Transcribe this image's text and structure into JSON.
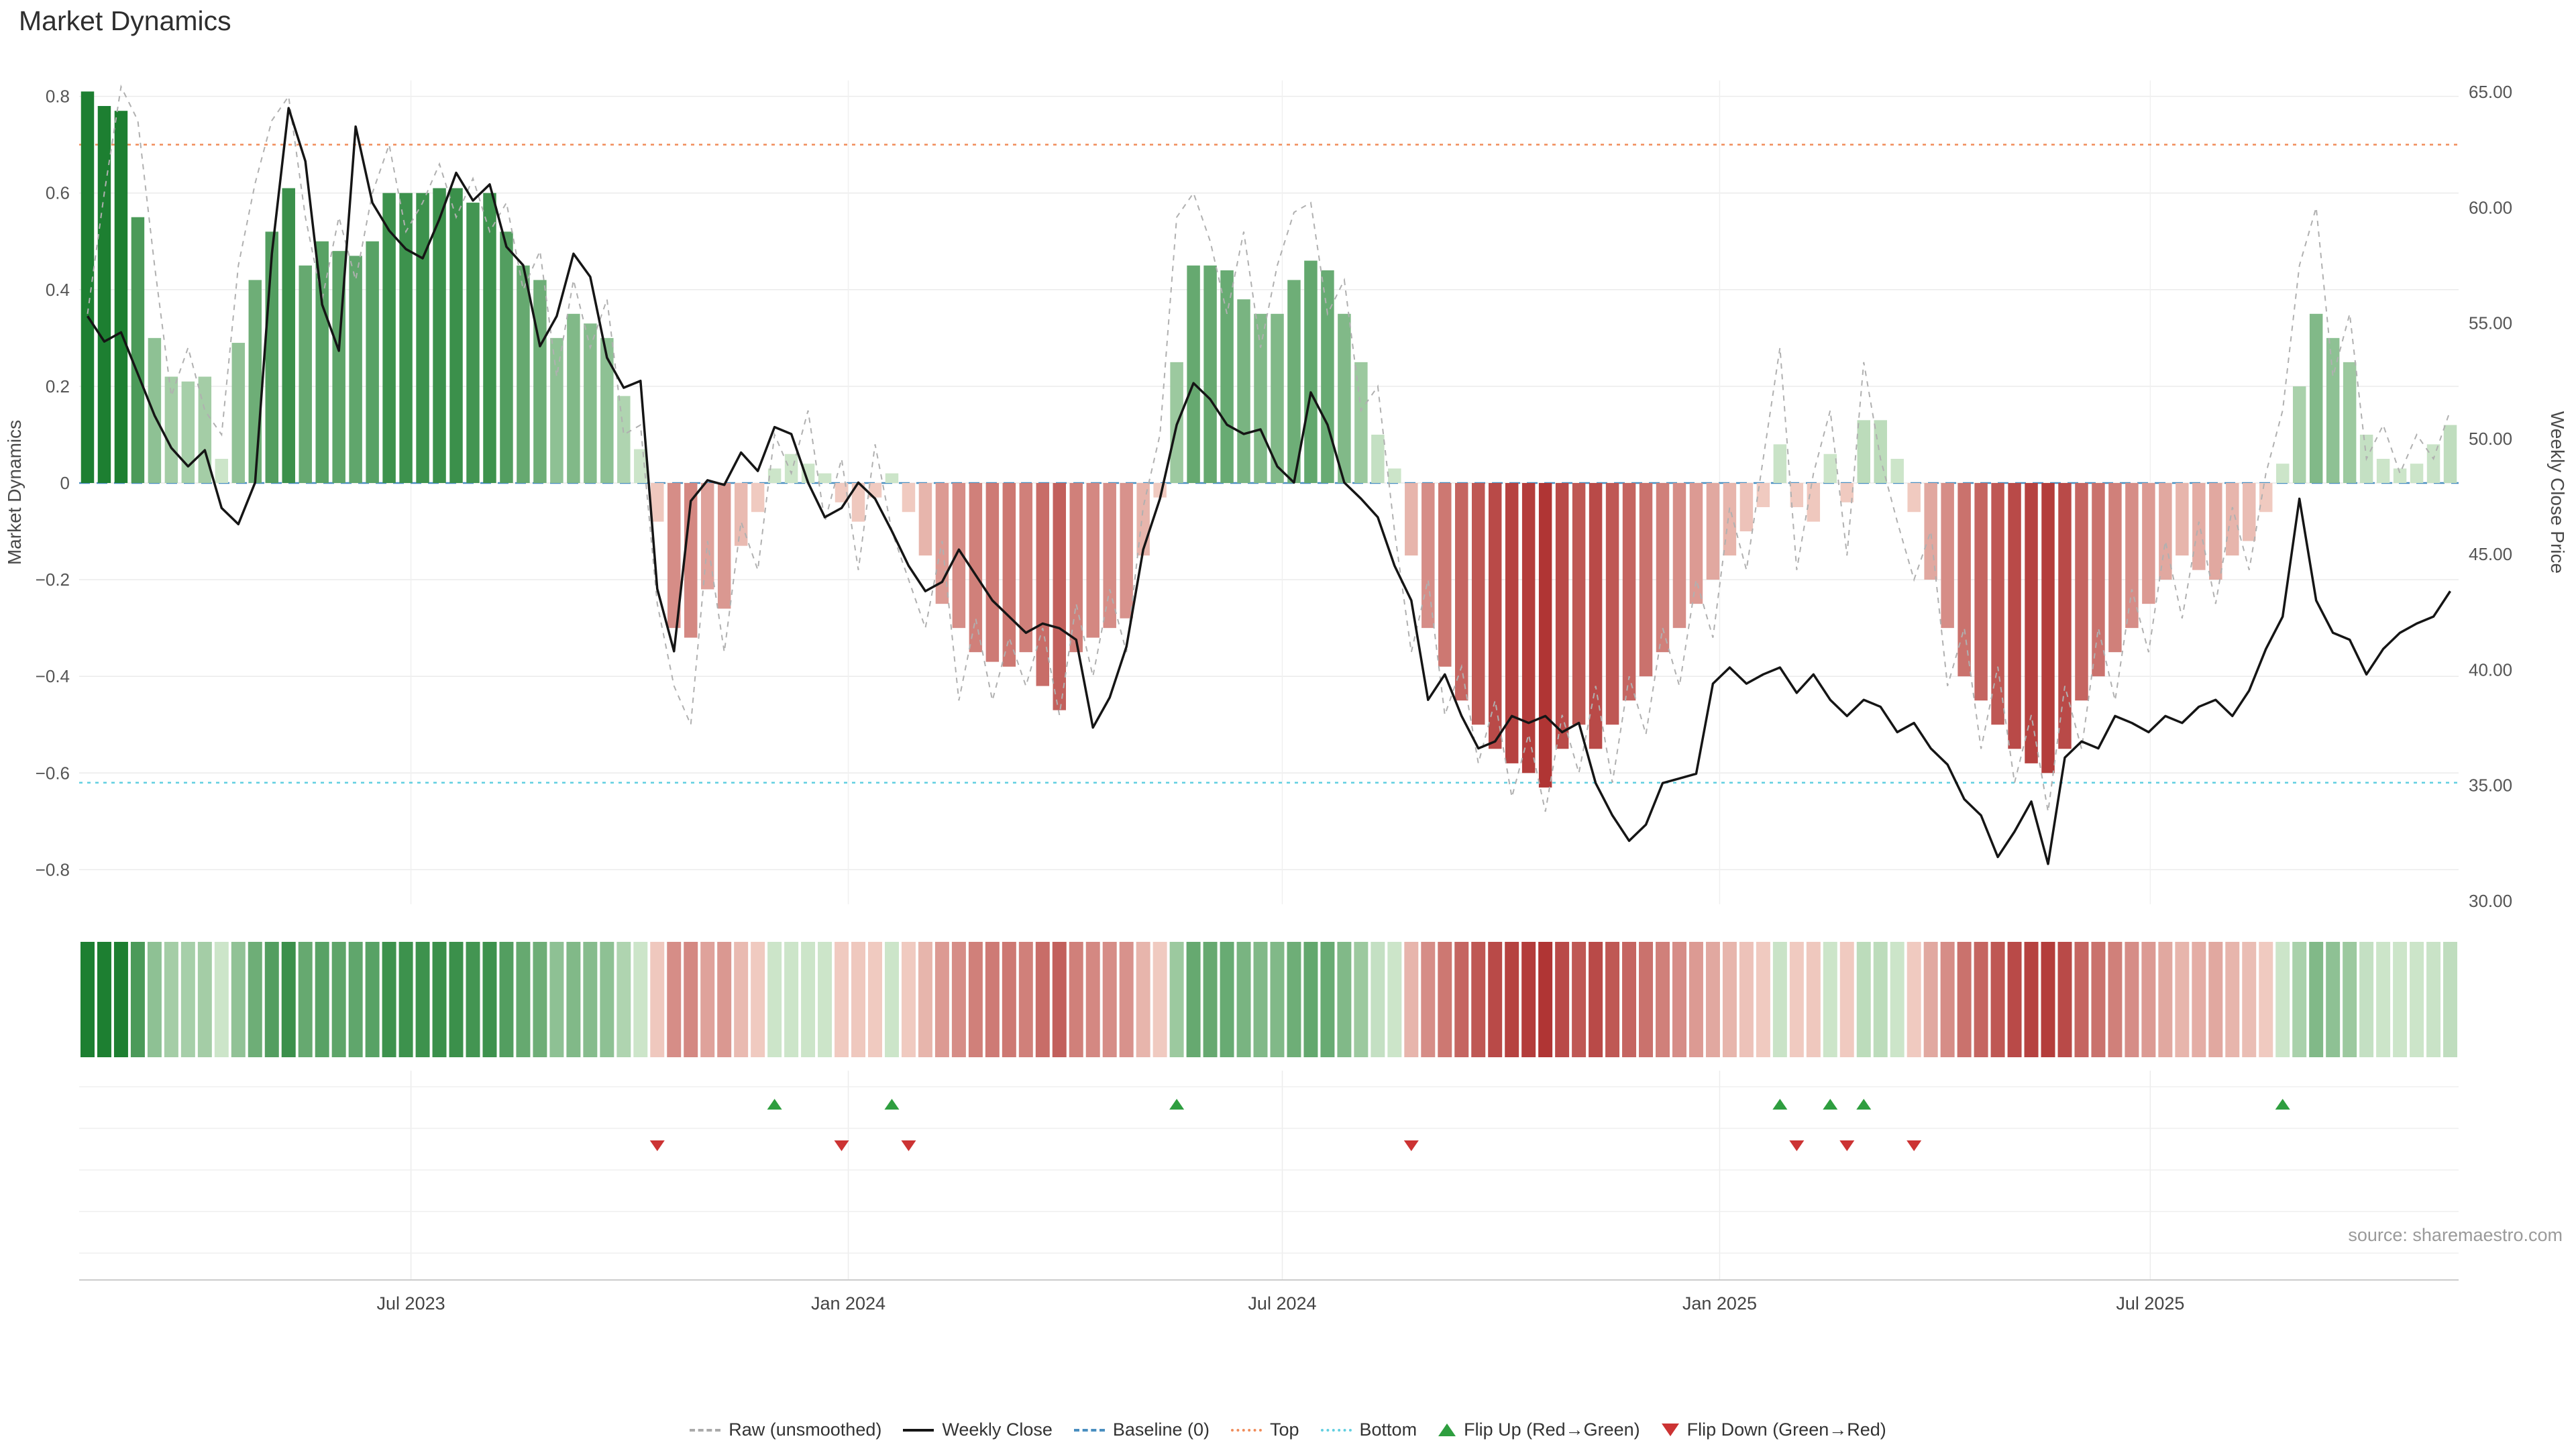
{
  "title": "Market Dynamics",
  "source": "source: sharemaestro.com",
  "axes": {
    "left": {
      "label": "Market Dynamics",
      "ticks": [
        {
          "label": "0.8",
          "v": 0.8
        },
        {
          "label": "0.6",
          "v": 0.6
        },
        {
          "label": "0.4",
          "v": 0.4
        },
        {
          "label": "0.2",
          "v": 0.2
        },
        {
          "label": "0",
          "v": 0.0
        },
        {
          "label": "−0.2",
          "v": -0.2
        },
        {
          "label": "−0.4",
          "v": -0.4
        },
        {
          "label": "−0.6",
          "v": -0.6
        },
        {
          "label": "−0.8",
          "v": -0.8
        }
      ]
    },
    "right": {
      "label": "Weekly Close Price",
      "ticks": [
        {
          "label": "65.00",
          "p": 65
        },
        {
          "label": "60.00",
          "p": 60
        },
        {
          "label": "55.00",
          "p": 55
        },
        {
          "label": "50.00",
          "p": 50
        },
        {
          "label": "45.00",
          "p": 45
        },
        {
          "label": "40.00",
          "p": 40
        },
        {
          "label": "35.00",
          "p": 35
        },
        {
          "label": "30.00",
          "p": 30
        }
      ]
    },
    "x": {
      "ticks": [
        {
          "label": "Jul 2023",
          "i": 19.3
        },
        {
          "label": "Jan 2024",
          "i": 45.4
        },
        {
          "label": "Jul 2024",
          "i": 71.3
        },
        {
          "label": "Jan 2025",
          "i": 97.4
        },
        {
          "label": "Jul 2025",
          "i": 123.1
        }
      ]
    }
  },
  "colors": {
    "pos_dark": "#1d7f31",
    "pos_light": "#dff0da",
    "neg_dark": "#a61d1d",
    "neg_light": "#f8ddd2",
    "close_line": "#151515",
    "raw_line": "#b0b0b0",
    "baseline": "#4a8fc0",
    "top_line": "#f08c5a",
    "bottom_line": "#62cfe0",
    "flip_up": "#2e9e3f",
    "flip_down": "#cc3333",
    "grid": "#ebebeb",
    "axis_text": "#555555"
  },
  "chart_data": {
    "type": "combo-bar-line",
    "x_unit": "week",
    "x_start": "2023-02-13",
    "n_points": 142,
    "ylim_left": [
      -0.9,
      0.85
    ],
    "ylim_right": [
      29.5,
      65.5
    ],
    "grid": true,
    "legend_position": "bottom",
    "reference_lines": {
      "baseline": 0,
      "top": 0.7,
      "bottom": -0.62
    },
    "series": {
      "md": {
        "name": "Market Dynamics (smoothed, bars + heatmap strip)",
        "axis": "left",
        "values": [
          0.81,
          0.78,
          0.77,
          0.55,
          0.3,
          0.22,
          0.21,
          0.22,
          0.05,
          0.29,
          0.42,
          0.52,
          0.61,
          0.45,
          0.5,
          0.48,
          0.47,
          0.5,
          0.6,
          0.6,
          0.6,
          0.61,
          0.61,
          0.58,
          0.6,
          0.52,
          0.45,
          0.42,
          0.3,
          0.35,
          0.33,
          0.3,
          0.18,
          0.07,
          -0.08,
          -0.3,
          -0.32,
          -0.22,
          -0.26,
          -0.13,
          -0.06,
          0.03,
          0.06,
          0.04,
          0.02,
          -0.04,
          -0.08,
          -0.03,
          0.02,
          -0.06,
          -0.15,
          -0.25,
          -0.3,
          -0.35,
          -0.37,
          -0.38,
          -0.35,
          -0.42,
          -0.47,
          -0.35,
          -0.32,
          -0.3,
          -0.28,
          -0.15,
          -0.03,
          0.25,
          0.45,
          0.45,
          0.44,
          0.38,
          0.35,
          0.35,
          0.42,
          0.46,
          0.44,
          0.35,
          0.25,
          0.1,
          0.03,
          -0.15,
          -0.3,
          -0.38,
          -0.45,
          -0.5,
          -0.55,
          -0.58,
          -0.6,
          -0.63,
          -0.55,
          -0.5,
          -0.55,
          -0.5,
          -0.45,
          -0.4,
          -0.35,
          -0.3,
          -0.25,
          -0.2,
          -0.15,
          -0.1,
          -0.05,
          0.08,
          -0.05,
          -0.08,
          0.06,
          -0.04,
          0.13,
          0.13,
          0.05,
          -0.06,
          -0.2,
          -0.3,
          -0.4,
          -0.45,
          -0.5,
          -0.55,
          -0.58,
          -0.6,
          -0.55,
          -0.45,
          -0.4,
          -0.35,
          -0.3,
          -0.25,
          -0.2,
          -0.15,
          -0.18,
          -0.2,
          -0.15,
          -0.12,
          -0.06,
          0.04,
          0.2,
          0.35,
          0.3,
          0.25,
          0.1,
          0.05,
          0.03,
          0.04,
          0.08,
          0.12
        ]
      },
      "raw": {
        "name": "Raw (unsmoothed)",
        "axis": "left",
        "values": [
          0.35,
          0.6,
          0.82,
          0.75,
          0.45,
          0.18,
          0.28,
          0.15,
          0.1,
          0.45,
          0.62,
          0.75,
          0.8,
          0.55,
          0.38,
          0.55,
          0.42,
          0.6,
          0.7,
          0.52,
          0.58,
          0.66,
          0.55,
          0.63,
          0.52,
          0.58,
          0.4,
          0.48,
          0.22,
          0.42,
          0.28,
          0.38,
          0.1,
          0.12,
          -0.25,
          -0.42,
          -0.5,
          -0.12,
          -0.35,
          -0.08,
          -0.18,
          0.1,
          0.02,
          0.15,
          -0.08,
          0.05,
          -0.18,
          0.08,
          -0.1,
          -0.2,
          -0.3,
          -0.12,
          -0.45,
          -0.28,
          -0.45,
          -0.32,
          -0.42,
          -0.3,
          -0.48,
          -0.25,
          -0.4,
          -0.22,
          -0.35,
          -0.05,
          0.1,
          0.55,
          0.6,
          0.5,
          0.35,
          0.52,
          0.28,
          0.45,
          0.56,
          0.58,
          0.35,
          0.42,
          0.15,
          0.2,
          -0.1,
          -0.35,
          -0.2,
          -0.48,
          -0.38,
          -0.58,
          -0.45,
          -0.65,
          -0.52,
          -0.68,
          -0.48,
          -0.6,
          -0.42,
          -0.62,
          -0.4,
          -0.52,
          -0.3,
          -0.42,
          -0.2,
          -0.32,
          -0.05,
          -0.18,
          0.05,
          0.28,
          -0.18,
          0.02,
          0.15,
          -0.15,
          0.25,
          0.05,
          -0.08,
          -0.2,
          -0.1,
          -0.42,
          -0.3,
          -0.55,
          -0.38,
          -0.62,
          -0.48,
          -0.68,
          -0.42,
          -0.55,
          -0.3,
          -0.45,
          -0.22,
          -0.35,
          -0.12,
          -0.28,
          -0.08,
          -0.25,
          -0.05,
          -0.18,
          0.02,
          0.15,
          0.45,
          0.57,
          0.22,
          0.35,
          0.05,
          0.12,
          0.02,
          0.1,
          0.05,
          0.15
        ]
      },
      "close": {
        "name": "Weekly Close",
        "axis": "right",
        "values": [
          55.3,
          54.2,
          54.6,
          52.8,
          51.0,
          49.6,
          48.8,
          49.5,
          47.0,
          46.3,
          48.1,
          58.0,
          64.3,
          62.0,
          55.8,
          53.8,
          63.5,
          60.2,
          59.0,
          58.2,
          57.8,
          59.5,
          61.5,
          60.3,
          61.0,
          58.3,
          57.5,
          54.0,
          55.3,
          58.0,
          57.0,
          53.5,
          52.2,
          52.5,
          43.5,
          40.8,
          47.3,
          48.2,
          48.0,
          49.4,
          48.6,
          50.5,
          50.2,
          48.1,
          46.6,
          47.0,
          48.1,
          47.4,
          46.0,
          44.5,
          43.4,
          43.8,
          45.2,
          44.1,
          43.0,
          42.3,
          41.6,
          42.0,
          41.8,
          41.3,
          37.5,
          38.8,
          41.0,
          45.2,
          47.4,
          50.6,
          52.4,
          51.7,
          50.6,
          50.2,
          50.4,
          48.8,
          48.1,
          52.0,
          50.6,
          48.1,
          47.4,
          46.6,
          44.5,
          43.0,
          38.7,
          39.8,
          38.0,
          36.6,
          36.9,
          38.0,
          37.7,
          38.0,
          37.3,
          37.7,
          35.1,
          33.7,
          32.6,
          33.3,
          35.1,
          35.3,
          35.5,
          39.4,
          40.1,
          39.4,
          39.8,
          40.1,
          39.0,
          39.8,
          38.7,
          38.0,
          38.7,
          38.4,
          37.3,
          37.7,
          36.6,
          35.9,
          34.4,
          33.7,
          31.9,
          33.0,
          34.3,
          31.6,
          36.2,
          36.9,
          36.6,
          38.0,
          37.7,
          37.3,
          38.0,
          37.7,
          38.4,
          38.7,
          38.0,
          39.1,
          40.9,
          42.3,
          47.4,
          43.0,
          41.6,
          41.3,
          39.8,
          40.9,
          41.6,
          42.0,
          42.3,
          43.4
        ]
      }
    },
    "markers": {
      "flip_up_indices": [
        41,
        48,
        65,
        101,
        104,
        106,
        131
      ],
      "flip_down_indices": [
        34,
        45,
        49,
        79,
        102,
        105,
        109
      ]
    },
    "heatmap_strip": "color cells mirroring md values (green positive, red negative)"
  },
  "legend": {
    "items": [
      {
        "label": "Raw (unsmoothed)",
        "swatch": "dashed-line",
        "color": "#aaaaaa"
      },
      {
        "label": "Weekly Close",
        "swatch": "solid-line",
        "color": "#151515"
      },
      {
        "label": "Baseline (0)",
        "swatch": "dashed-line",
        "color": "#4a8fc0"
      },
      {
        "label": "Top",
        "swatch": "dotted-line",
        "color": "#f08c5a"
      },
      {
        "label": "Bottom",
        "swatch": "dotted-line",
        "color": "#62cfe0"
      },
      {
        "label": "Flip Up (Red→Green)",
        "swatch": "triangle-up",
        "color": "#2e9e3f"
      },
      {
        "label": "Flip Down (Green→Red)",
        "swatch": "triangle-down",
        "color": "#cc3333"
      }
    ]
  }
}
